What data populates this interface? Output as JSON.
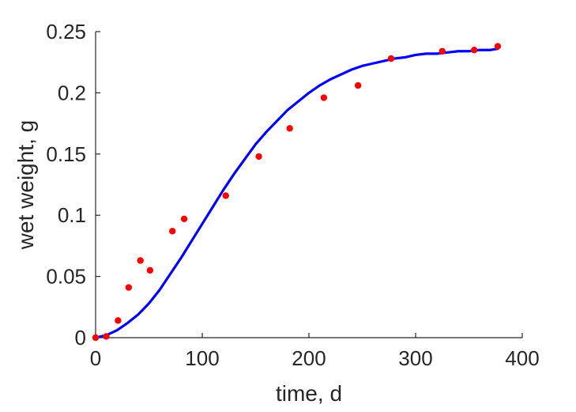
{
  "chart_data": {
    "type": "scatter",
    "title": "",
    "xlabel": "time, d",
    "ylabel": "wet weight, g",
    "xlim": [
      0,
      400
    ],
    "ylim": [
      0,
      0.25
    ],
    "x_ticks": [
      0,
      100,
      200,
      300,
      400
    ],
    "x_tick_labels": [
      "0",
      "100",
      "200",
      "300",
      "400"
    ],
    "y_ticks": [
      0,
      0.05,
      0.1,
      0.15,
      0.2,
      0.25
    ],
    "y_tick_labels": [
      "0",
      "0.05",
      "0.1",
      "0.15",
      "0.2",
      "0.25"
    ],
    "grid": false,
    "legend": "none",
    "series": [
      {
        "kind": "scatter",
        "color": "#ff0000",
        "x": [
          0,
          10,
          21,
          31,
          42,
          51,
          72,
          83,
          122,
          153,
          182,
          214,
          246,
          277,
          325,
          355,
          377
        ],
        "y": [
          0.0,
          0.001,
          0.014,
          0.041,
          0.063,
          0.055,
          0.087,
          0.097,
          0.116,
          0.148,
          0.171,
          0.196,
          0.206,
          0.228,
          0.234,
          0.235,
          0.238
        ]
      },
      {
        "kind": "line",
        "color": "#0000ff",
        "x": [
          0,
          10,
          20,
          30,
          40,
          50,
          60,
          70,
          80,
          90,
          100,
          110,
          120,
          130,
          140,
          150,
          160,
          170,
          180,
          190,
          200,
          210,
          220,
          230,
          240,
          250,
          260,
          270,
          280,
          290,
          300,
          310,
          320,
          330,
          340,
          350,
          360,
          370,
          377
        ],
        "y": [
          0.0,
          0.002,
          0.006,
          0.012,
          0.019,
          0.028,
          0.039,
          0.052,
          0.065,
          0.079,
          0.093,
          0.107,
          0.121,
          0.134,
          0.146,
          0.158,
          0.168,
          0.177,
          0.186,
          0.193,
          0.2,
          0.206,
          0.211,
          0.215,
          0.219,
          0.222,
          0.224,
          0.226,
          0.228,
          0.229,
          0.231,
          0.232,
          0.232,
          0.233,
          0.234,
          0.234,
          0.235,
          0.235,
          0.236
        ]
      }
    ]
  }
}
